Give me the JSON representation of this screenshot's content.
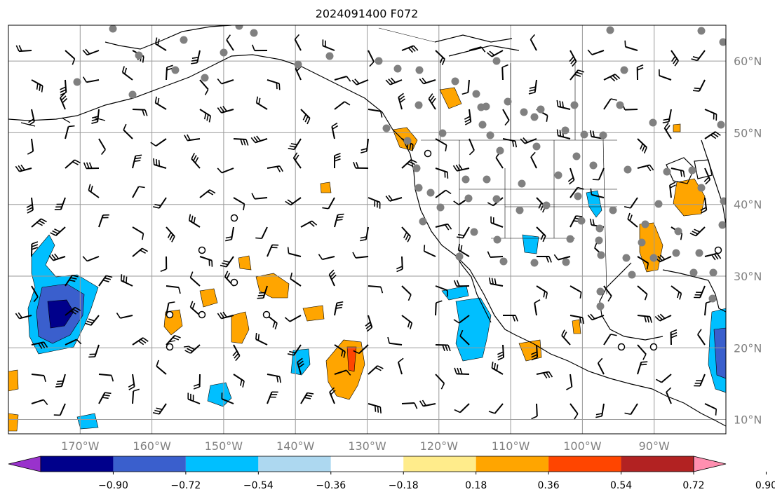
{
  "title": "2024091400 F072",
  "map": {
    "lon_range": [
      -180,
      -80
    ],
    "lat_range": [
      8,
      65
    ],
    "gridlines": true,
    "lat_labels": [
      "60°N",
      "50°N",
      "40°N",
      "30°N",
      "20°N",
      "10°N"
    ],
    "lat_values": [
      60,
      50,
      40,
      30,
      20,
      10
    ],
    "lon_labels": [
      "170°W",
      "160°W",
      "150°W",
      "140°W",
      "130°W",
      "120°W",
      "110°W",
      "100°W",
      "90°W"
    ],
    "lon_values": [
      -170,
      -160,
      -150,
      -140,
      -130,
      -120,
      -110,
      -100,
      -90
    ],
    "station_marker_color": "#808080",
    "wind_barb_color": "#000000",
    "coastline_color": "#000000"
  },
  "colorbar": {
    "orientation": "horizontal",
    "extend": "both",
    "ticks": [
      "−0.90",
      "−0.72",
      "−0.54",
      "−0.36",
      "−0.18",
      "0.18",
      "0.36",
      "0.54",
      "0.72",
      "0.90"
    ],
    "colors": [
      "#9932cc",
      "#00008b",
      "#3a5fcd",
      "#00bfff",
      "#add8f0",
      "#ffffff",
      "#ffec8b",
      "#ffa500",
      "#ff4500",
      "#b22222",
      "#ff8fb0"
    ]
  },
  "chart_data": {
    "type": "heatmap",
    "title": "2024091400 F072",
    "xlim": [
      -180,
      -80
    ],
    "ylim": [
      8,
      65
    ],
    "x_ticks": [
      "170°W",
      "160°W",
      "150°W",
      "140°W",
      "130°W",
      "120°W",
      "110°W",
      "100°W",
      "90°W"
    ],
    "y_ticks": [
      "60°N",
      "50°N",
      "40°N",
      "30°N",
      "20°N",
      "10°N"
    ],
    "color_levels": [
      -0.9,
      -0.72,
      -0.54,
      -0.36,
      -0.18,
      0.18,
      0.36,
      0.54,
      0.72,
      0.9
    ],
    "grid": true
  }
}
